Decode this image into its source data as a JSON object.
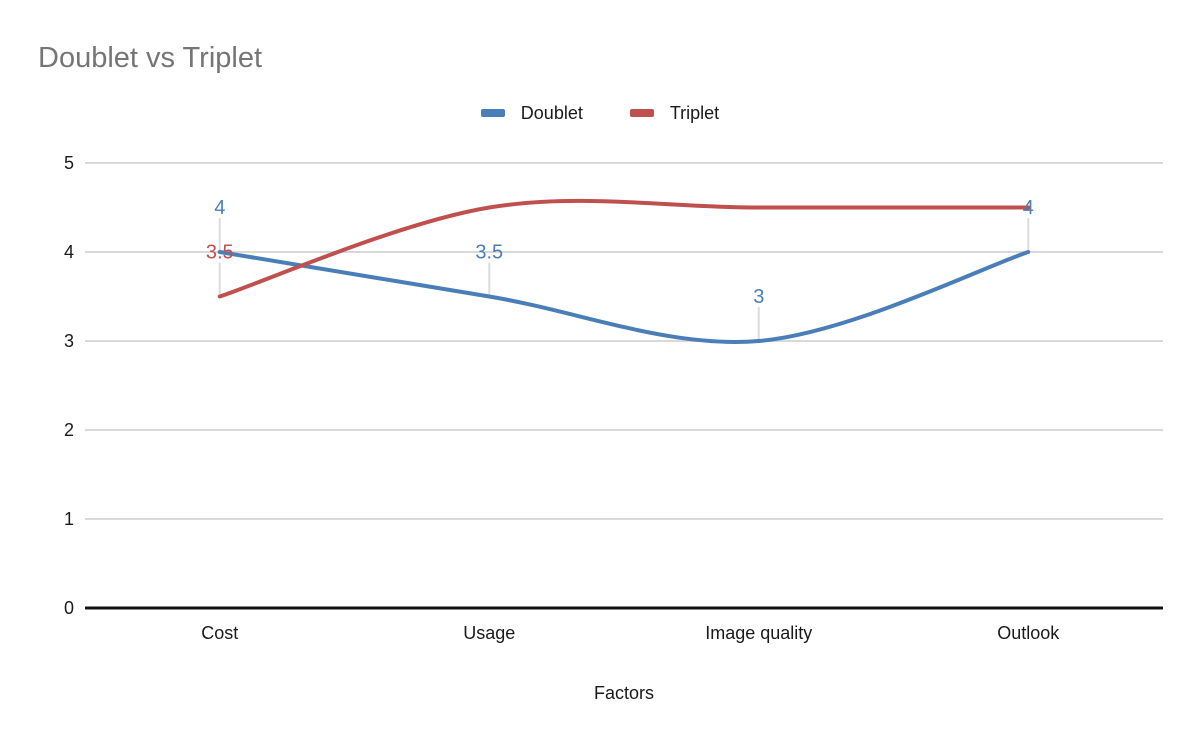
{
  "chart_data": {
    "type": "line",
    "title": "Doublet vs Triplet",
    "xlabel": "Factors",
    "ylabel": "",
    "categories": [
      "Cost",
      "Usage",
      "Image quality",
      "Outlook"
    ],
    "series": [
      {
        "name": "Doublet",
        "color": "#4a7eb8",
        "values": [
          4,
          3.5,
          3,
          4
        ],
        "point_labels": [
          "4",
          "3.5",
          "3",
          "4"
        ]
      },
      {
        "name": "Triplet",
        "color": "#c0504d",
        "values": [
          3.5,
          4.5,
          4.5,
          4.5
        ],
        "point_labels": [
          "3.5",
          "",
          "",
          ""
        ]
      }
    ],
    "ylim": [
      0,
      5
    ],
    "yticks": [
      "0",
      "1",
      "2",
      "3",
      "4",
      "5"
    ],
    "grid": true,
    "smooth": true,
    "legend_position": "top",
    "styles": {
      "title_color": "#757575",
      "axis_text_color": "#1a1a1a",
      "gridline_color": "#d9d9d9",
      "axis_line_color": "#111111",
      "leader_line_color": "#dcdcdc",
      "background": "#ffffff"
    }
  }
}
